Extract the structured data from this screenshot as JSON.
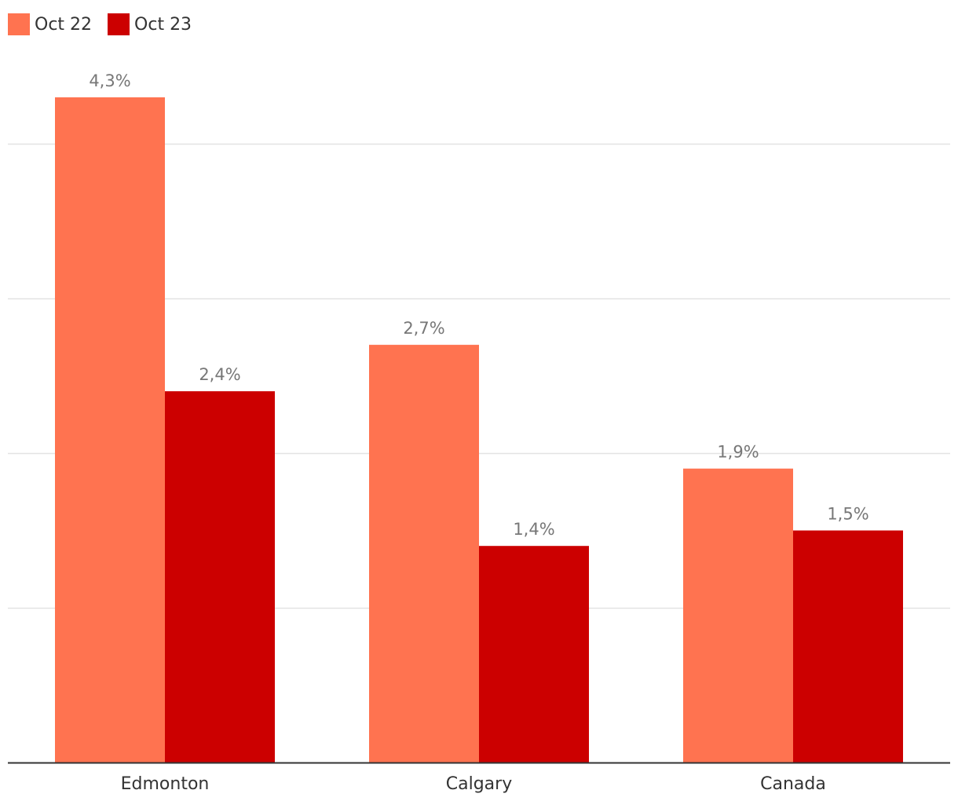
{
  "chart_data": {
    "type": "bar",
    "categories": [
      "Edmonton",
      "Calgary",
      "Canada"
    ],
    "series": [
      {
        "name": "Oct 22",
        "color": "#ff7350",
        "values": [
          4.3,
          2.7,
          1.9
        ],
        "labels": [
          "4,3%",
          "2,7%",
          "1,9%"
        ]
      },
      {
        "name": "Oct 23",
        "color": "#cc0000",
        "values": [
          2.4,
          1.4,
          1.5
        ],
        "labels": [
          "2,4%",
          "1,4%",
          "1,5%"
        ]
      }
    ],
    "ylim": [
      0,
      5
    ],
    "grid": true,
    "legend_position": "top-left"
  }
}
